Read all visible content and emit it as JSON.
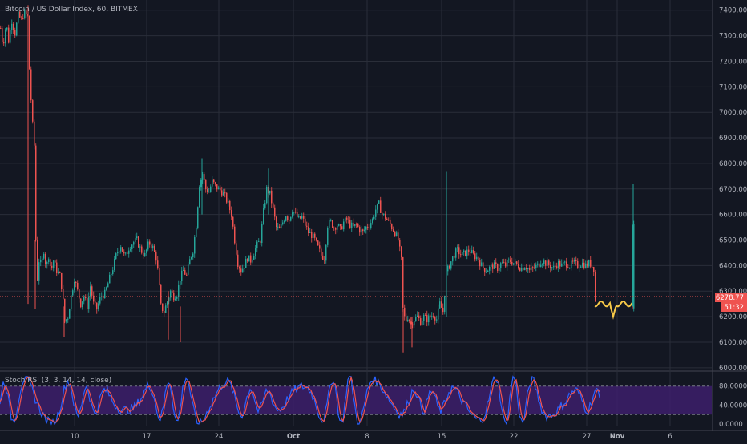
{
  "header": {
    "title": "Bitcoin / US Dollar Index, 60, BITMEX"
  },
  "indicator": {
    "label": "Stoch RSI (3, 3, 14, 14, close)",
    "upper": 80,
    "lower": 20
  },
  "colors": {
    "background": "#131722",
    "grid": "#2a2e39",
    "text": "#b2b5be",
    "up": "#26a69a",
    "down": "#ef5350",
    "price_line": "#ef5350",
    "stoch_k": "#2962ff",
    "stoch_d": "#ef5350",
    "stoch_band": "#3d1f6b",
    "overlay": "#f7c948"
  },
  "chart_data": {
    "type": "candlestick",
    "y_ticks": [
      "7400.00",
      "7300.00",
      "7200.00",
      "7100.00",
      "7000.00",
      "6900.00",
      "6800.00",
      "6700.00",
      "6600.00",
      "6500.00",
      "6400.00",
      "6300.00",
      "6200.00",
      "6100.00",
      "6000.00"
    ],
    "y_range": [
      5990,
      7440
    ],
    "x_ticks": [
      "10",
      "17",
      "24",
      "Oct",
      "8",
      "15",
      "22",
      "27",
      "Nov",
      "6"
    ],
    "current_price": "6278.77",
    "countdown": "51:32",
    "stoch_ticks": [
      "80.0000",
      "40.0000",
      "0.0000"
    ],
    "stoch_range": [
      -5,
      110
    ],
    "price_path": [
      [
        0,
        7330
      ],
      [
        3,
        7260
      ],
      [
        7,
        7350
      ],
      [
        10,
        7280
      ],
      [
        14,
        7360
      ],
      [
        18,
        7310
      ],
      [
        22,
        7380
      ],
      [
        26,
        7360
      ],
      [
        29,
        7390
      ],
      [
        32,
        7380
      ],
      [
        35,
        7370
      ],
      [
        36,
        7170
      ],
      [
        38,
        7050
      ],
      [
        40,
        6950
      ],
      [
        42,
        6870
      ],
      [
        44,
        6500
      ],
      [
        46,
        6350
      ],
      [
        48,
        6420
      ],
      [
        51,
        6400
      ],
      [
        54,
        6460
      ],
      [
        57,
        6390
      ],
      [
        60,
        6440
      ],
      [
        63,
        6380
      ],
      [
        66,
        6420
      ],
      [
        70,
        6380
      ],
      [
        74,
        6360
      ],
      [
        77,
        6300
      ],
      [
        80,
        6180
      ],
      [
        84,
        6200
      ],
      [
        88,
        6280
      ],
      [
        92,
        6350
      ],
      [
        96,
        6300
      ],
      [
        100,
        6250
      ],
      [
        104,
        6280
      ],
      [
        108,
        6240
      ],
      [
        112,
        6320
      ],
      [
        116,
        6250
      ],
      [
        120,
        6230
      ],
      [
        125,
        6280
      ],
      [
        130,
        6290
      ],
      [
        135,
        6340
      ],
      [
        140,
        6390
      ],
      [
        145,
        6450
      ],
      [
        150,
        6480
      ],
      [
        155,
        6430
      ],
      [
        160,
        6470
      ],
      [
        165,
        6490
      ],
      [
        170,
        6500
      ],
      [
        175,
        6460
      ],
      [
        180,
        6440
      ],
      [
        185,
        6490
      ],
      [
        190,
        6470
      ],
      [
        195,
        6420
      ],
      [
        200,
        6240
      ],
      [
        204,
        6220
      ],
      [
        208,
        6260
      ],
      [
        212,
        6300
      ],
      [
        216,
        6280
      ],
      [
        220,
        6290
      ],
      [
        224,
        6350
      ],
      [
        228,
        6380
      ],
      [
        232,
        6360
      ],
      [
        236,
        6420
      ],
      [
        240,
        6460
      ],
      [
        244,
        6560
      ],
      [
        248,
        6720
      ],
      [
        252,
        6760
      ],
      [
        256,
        6700
      ],
      [
        260,
        6690
      ],
      [
        264,
        6730
      ],
      [
        268,
        6710
      ],
      [
        272,
        6700
      ],
      [
        276,
        6690
      ],
      [
        280,
        6670
      ],
      [
        284,
        6640
      ],
      [
        288,
        6600
      ],
      [
        292,
        6500
      ],
      [
        296,
        6410
      ],
      [
        300,
        6380
      ],
      [
        304,
        6400
      ],
      [
        308,
        6430
      ],
      [
        312,
        6420
      ],
      [
        316,
        6450
      ],
      [
        320,
        6480
      ],
      [
        324,
        6500
      ],
      [
        328,
        6610
      ],
      [
        332,
        6700
      ],
      [
        336,
        6680
      ],
      [
        340,
        6620
      ],
      [
        344,
        6550
      ],
      [
        348,
        6540
      ],
      [
        352,
        6570
      ],
      [
        356,
        6600
      ],
      [
        360,
        6580
      ],
      [
        364,
        6620
      ],
      [
        368,
        6600
      ],
      [
        372,
        6580
      ],
      [
        376,
        6590
      ],
      [
        380,
        6560
      ],
      [
        384,
        6530
      ],
      [
        388,
        6520
      ],
      [
        392,
        6500
      ],
      [
        396,
        6470
      ],
      [
        400,
        6440
      ],
      [
        404,
        6430
      ],
      [
        408,
        6560
      ],
      [
        412,
        6570
      ],
      [
        416,
        6550
      ],
      [
        420,
        6560
      ],
      [
        424,
        6540
      ],
      [
        428,
        6570
      ],
      [
        432,
        6580
      ],
      [
        436,
        6560
      ],
      [
        440,
        6550
      ],
      [
        444,
        6560
      ],
      [
        448,
        6540
      ],
      [
        452,
        6530
      ],
      [
        456,
        6550
      ],
      [
        460,
        6560
      ],
      [
        464,
        6580
      ],
      [
        468,
        6620
      ],
      [
        472,
        6640
      ],
      [
        476,
        6600
      ],
      [
        480,
        6590
      ],
      [
        484,
        6570
      ],
      [
        488,
        6550
      ],
      [
        492,
        6530
      ],
      [
        496,
        6500
      ],
      [
        500,
        6420
      ],
      [
        502,
        6230
      ],
      [
        505,
        6180
      ],
      [
        508,
        6200
      ],
      [
        512,
        6170
      ],
      [
        516,
        6190
      ],
      [
        520,
        6200
      ],
      [
        524,
        6180
      ],
      [
        528,
        6200
      ],
      [
        532,
        6190
      ],
      [
        536,
        6200
      ],
      [
        540,
        6210
      ],
      [
        544,
        6190
      ],
      [
        548,
        6250
      ],
      [
        552,
        6220
      ],
      [
        556,
        6370
      ],
      [
        560,
        6400
      ],
      [
        565,
        6440
      ],
      [
        570,
        6460
      ],
      [
        575,
        6440
      ],
      [
        580,
        6450
      ],
      [
        585,
        6460
      ],
      [
        590,
        6440
      ],
      [
        595,
        6430
      ],
      [
        600,
        6400
      ],
      [
        605,
        6380
      ],
      [
        610,
        6390
      ],
      [
        615,
        6400
      ],
      [
        620,
        6390
      ],
      [
        625,
        6410
      ],
      [
        630,
        6400
      ],
      [
        635,
        6420
      ],
      [
        640,
        6410
      ],
      [
        645,
        6400
      ],
      [
        650,
        6390
      ],
      [
        655,
        6400
      ],
      [
        660,
        6380
      ],
      [
        665,
        6390
      ],
      [
        670,
        6400
      ],
      [
        675,
        6420
      ],
      [
        680,
        6410
      ],
      [
        685,
        6400
      ],
      [
        690,
        6390
      ],
      [
        695,
        6410
      ],
      [
        700,
        6400
      ],
      [
        705,
        6410
      ],
      [
        710,
        6400
      ],
      [
        715,
        6410
      ],
      [
        720,
        6400
      ],
      [
        725,
        6410
      ],
      [
        730,
        6400
      ],
      [
        735,
        6410
      ],
      [
        740,
        6390
      ],
      [
        742,
        6260
      ],
      [
        745,
        6250
      ],
      [
        750,
        6240
      ],
      [
        755,
        6250
      ],
      [
        760,
        6240
      ],
      [
        764,
        6190
      ],
      [
        768,
        6230
      ],
      [
        772,
        6260
      ],
      [
        776,
        6250
      ],
      [
        780,
        6260
      ],
      [
        784,
        6240
      ],
      [
        788,
        6240
      ],
      [
        790,
        6560
      ]
    ],
    "spikes": [
      [
        35,
        6250,
        7420
      ],
      [
        44,
        6230,
        6500
      ],
      [
        80,
        6120,
        6240
      ],
      [
        210,
        6110,
        6300
      ],
      [
        225,
        6100,
        6240
      ],
      [
        252,
        6600,
        6820
      ],
      [
        335,
        6600,
        6780
      ],
      [
        503,
        6060,
        6230
      ],
      [
        514,
        6080,
        6200
      ],
      [
        557,
        6200,
        6770
      ],
      [
        790,
        6240,
        6720
      ]
    ]
  }
}
